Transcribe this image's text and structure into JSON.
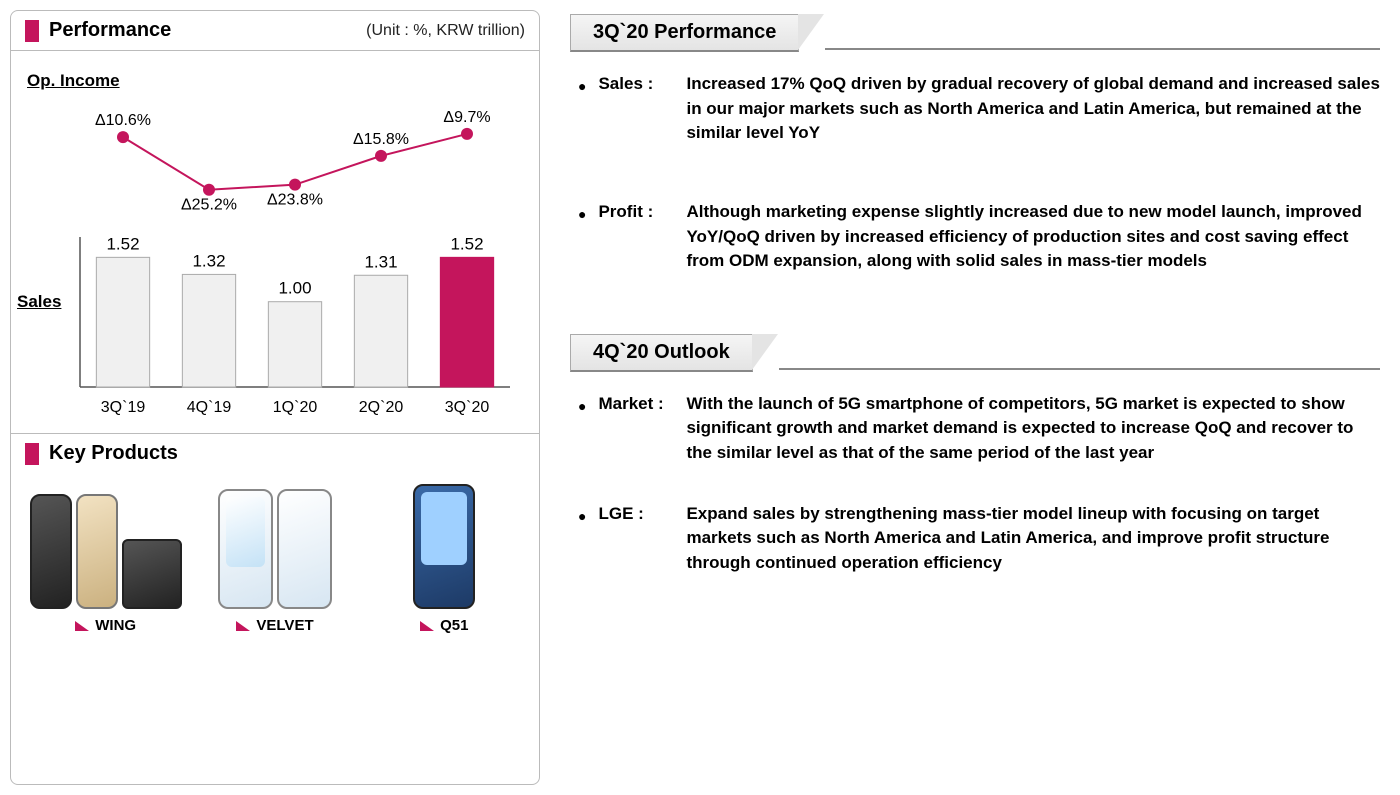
{
  "left": {
    "performance_title": "Performance",
    "unit_label": "(Unit : %, KRW trillion)",
    "op_income_label": "Op. Income",
    "sales_label": "Sales",
    "key_products_title": "Key Products",
    "accent_color": "#c4155c",
    "bar_fill": "#f0f0f0",
    "bar_stroke": "#aaaaaa",
    "chart": {
      "type": "bar+line",
      "categories": [
        "3Q`19",
        "4Q`19",
        "1Q`20",
        "2Q`20",
        "3Q`20"
      ],
      "sales_values": [
        1.52,
        1.32,
        1.0,
        1.31,
        1.52
      ],
      "sales_value_labels": [
        "1.52",
        "1.32",
        "1.00",
        "1.31",
        "1.52"
      ],
      "highlight_index": 4,
      "op_deltas": [
        "Δ10.6%",
        "Δ25.2%",
        "Δ23.8%",
        "Δ15.8%",
        "Δ9.7%"
      ],
      "op_line_y": [
        10.6,
        25.2,
        23.8,
        15.8,
        9.7
      ],
      "sales_ymax": 1.7,
      "bar_width_ratio": 0.62,
      "line_color": "#c4155c",
      "dot_radius": 6,
      "axis_color": "#555555",
      "label_fontsize": 16
    },
    "products": [
      {
        "name": "WING"
      },
      {
        "name": "VELVET"
      },
      {
        "name": "Q51"
      }
    ]
  },
  "right": {
    "sections": [
      {
        "title": "3Q`20 Performance",
        "bullets": [
          {
            "label": "Sales :",
            "text": "Increased 17% QoQ driven by gradual recovery of global demand and increased sales in our major markets such as North America and Latin America, but remained at the similar level YoY"
          },
          {
            "label": "Profit :",
            "text": "Although marketing expense slightly increased due to new model launch, improved YoY/QoQ driven by increased efficiency of production sites and cost saving effect from ODM expansion, along with solid sales in mass-tier models"
          }
        ]
      },
      {
        "title": "4Q`20 Outlook",
        "bullets": [
          {
            "label": "Market :",
            "text": "With the launch of 5G smartphone of competitors, 5G market is expected to show significant growth and market demand is expected to increase QoQ and recover to the similar level as that of the same period of the last year"
          },
          {
            "label": "LGE :",
            "text": "Expand sales by strengthening mass-tier model lineup with focusing on target markets such as North America and Latin America, and improve profit structure through continued operation efficiency"
          }
        ]
      }
    ]
  }
}
